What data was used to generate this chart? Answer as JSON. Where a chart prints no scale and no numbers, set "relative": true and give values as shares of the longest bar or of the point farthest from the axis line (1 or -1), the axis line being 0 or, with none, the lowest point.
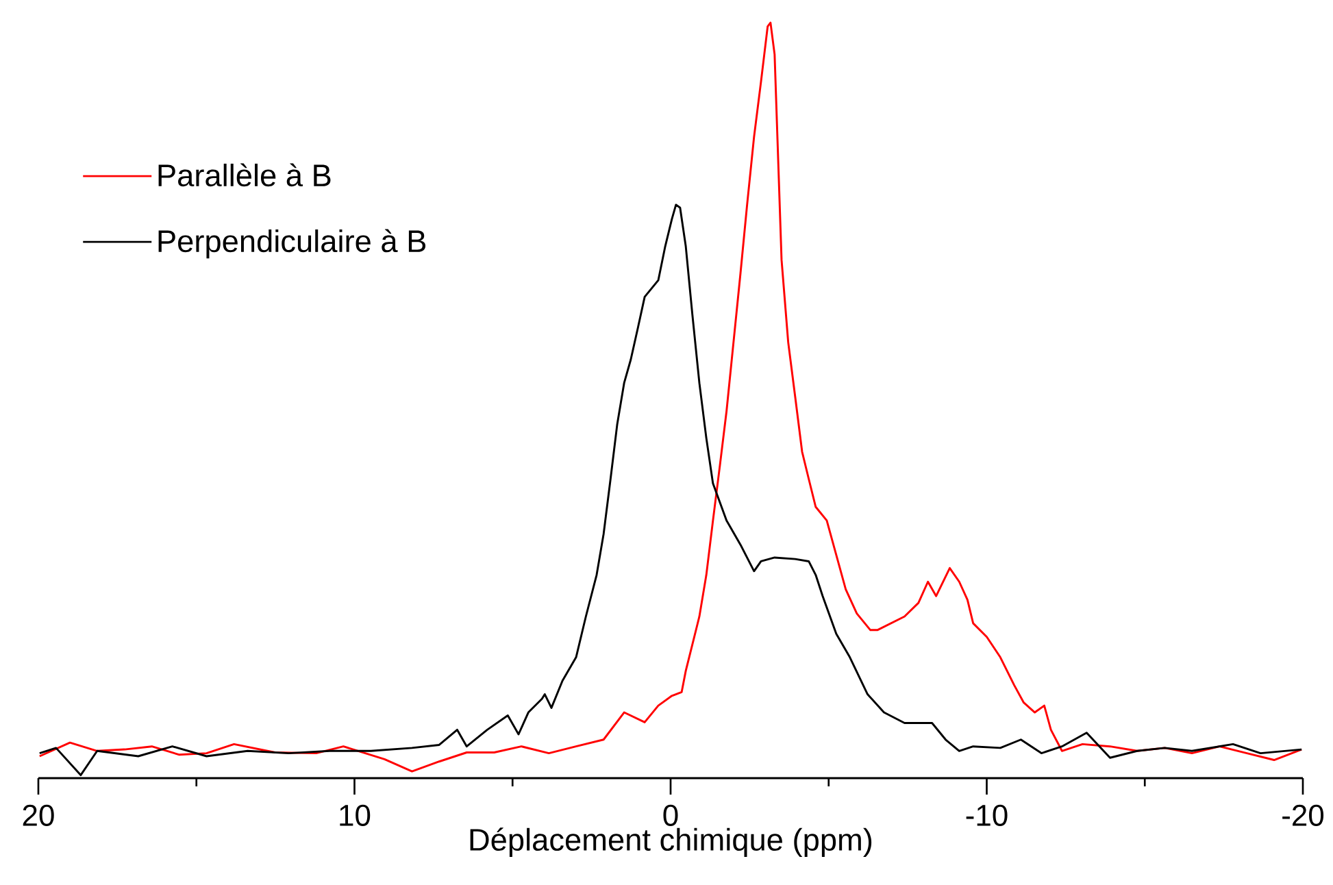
{
  "chart_data": {
    "type": "line",
    "relative": true,
    "xlabel": "Déplacement chimique (ppm)",
    "xlim": [
      20,
      -20
    ],
    "xticks": [
      20,
      {
        "value": 15,
        "label": null
      },
      10,
      {
        "value": 5,
        "label": null
      },
      0,
      {
        "value": -5,
        "label": null
      },
      -10,
      {
        "value": -15,
        "label": null
      },
      -20
    ],
    "legend": "top left",
    "marker": "none",
    "line_style": "solid",
    "grid": false,
    "series": [
      {
        "name": "Parallèle à B",
        "color": "#ff0000",
        "x": [
          19.96,
          19.0,
          18.14,
          17.27,
          16.41,
          15.54,
          14.68,
          13.81,
          12.51,
          11.21,
          10.35,
          9.05,
          8.18,
          7.32,
          6.45,
          5.58,
          4.72,
          3.85,
          2.99,
          2.12,
          1.47,
          0.82,
          0.39,
          -0.04,
          -0.35,
          -0.48,
          -0.91,
          -1.13,
          -1.34,
          -1.56,
          -1.77,
          -1.99,
          -2.21,
          -2.42,
          -2.64,
          -2.86,
          -3.07,
          -3.16,
          -3.29,
          -3.51,
          -3.72,
          -3.94,
          -4.16,
          -4.37,
          -4.59,
          -4.94,
          -5.54,
          -5.89,
          -6.32,
          -6.54,
          -6.97,
          -7.4,
          -7.84,
          -8.14,
          -8.4,
          -8.83,
          -9.13,
          -9.39,
          -9.57,
          -10.0,
          -10.43,
          -10.87,
          -11.17,
          -11.52,
          -11.82,
          -12.03,
          -12.38,
          -13.03,
          -13.9,
          -14.76,
          -15.63,
          -16.49,
          -17.36,
          -18.23,
          -19.09,
          -19.96
        ],
        "values": [
          0.029,
          0.047,
          0.036,
          0.038,
          0.042,
          0.031,
          0.033,
          0.045,
          0.034,
          0.033,
          0.042,
          0.025,
          0.009,
          0.022,
          0.034,
          0.034,
          0.042,
          0.033,
          0.042,
          0.051,
          0.087,
          0.074,
          0.096,
          0.109,
          0.114,
          0.142,
          0.214,
          0.269,
          0.341,
          0.414,
          0.486,
          0.577,
          0.668,
          0.759,
          0.849,
          0.922,
          0.995,
          1,
          0.958,
          0.686,
          0.577,
          0.505,
          0.432,
          0.396,
          0.359,
          0.341,
          0.25,
          0.218,
          0.196,
          0.196,
          0.205,
          0.214,
          0.232,
          0.26,
          0.241,
          0.278,
          0.26,
          0.236,
          0.205,
          0.187,
          0.16,
          0.123,
          0.1,
          0.087,
          0.096,
          0.064,
          0.036,
          0.045,
          0.042,
          0.036,
          0.04,
          0.033,
          0.042,
          0.033,
          0.024,
          0.038
        ]
      },
      {
        "name": "Perpendiculaire à B",
        "color": "#000000",
        "x": [
          19.96,
          19.44,
          18.66,
          18.14,
          16.84,
          15.76,
          14.68,
          13.38,
          12.08,
          10.78,
          9.48,
          8.18,
          7.32,
          6.75,
          6.45,
          5.8,
          5.15,
          4.81,
          4.5,
          4.07,
          3.98,
          3.77,
          3.42,
          2.99,
          2.68,
          2.34,
          2.12,
          1.9,
          1.69,
          1.47,
          1.26,
          1.04,
          0.82,
          0.39,
          0.17,
          -0.04,
          -0.17,
          -0.3,
          -0.48,
          -0.69,
          -0.91,
          -1.13,
          -1.34,
          -1.77,
          -2.21,
          -2.64,
          -2.86,
          -3.29,
          -3.94,
          -4.37,
          -4.59,
          -4.81,
          -5.24,
          -5.67,
          -6.23,
          -6.75,
          -7.4,
          -8.27,
          -8.7,
          -9.13,
          -9.57,
          -10.43,
          -11.08,
          -11.73,
          -12.38,
          -13.16,
          -13.9,
          -14.76,
          -15.63,
          -16.49,
          -17.79,
          -18.66,
          -19.96
        ],
        "values": [
          0.033,
          0.04,
          0.004,
          0.036,
          0.029,
          0.042,
          0.029,
          0.036,
          0.033,
          0.036,
          0.036,
          0.04,
          0.044,
          0.064,
          0.042,
          0.064,
          0.083,
          0.058,
          0.087,
          0.105,
          0.111,
          0.093,
          0.129,
          0.16,
          0.214,
          0.269,
          0.323,
          0.396,
          0.468,
          0.523,
          0.554,
          0.595,
          0.637,
          0.659,
          0.704,
          0.74,
          0.759,
          0.755,
          0.704,
          0.613,
          0.523,
          0.45,
          0.39,
          0.341,
          0.309,
          0.274,
          0.287,
          0.292,
          0.29,
          0.287,
          0.269,
          0.241,
          0.191,
          0.16,
          0.111,
          0.087,
          0.073,
          0.073,
          0.051,
          0.036,
          0.042,
          0.04,
          0.051,
          0.033,
          0.042,
          0.06,
          0.027,
          0.036,
          0.04,
          0.036,
          0.045,
          0.033,
          0.038
        ]
      }
    ]
  }
}
